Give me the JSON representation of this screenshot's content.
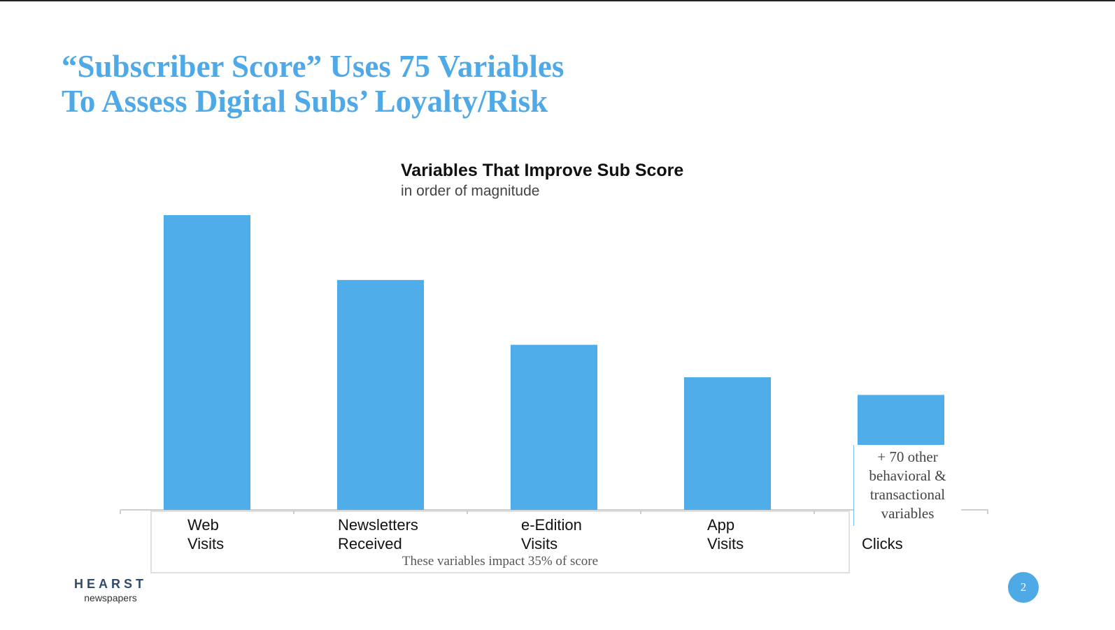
{
  "slide": {
    "title_line1": "“Subscriber Score” Uses 75 Variables",
    "title_line2": "To Assess Digital Subs’ Loyalty/Risk",
    "page_number": "2"
  },
  "logo": {
    "main": "HEARST",
    "sub": "newspapers"
  },
  "chart_data": {
    "type": "bar",
    "title": "Variables That Improve Sub Score",
    "subtitle": "in order of magnitude",
    "categories": [
      "Web\nVisits",
      "Newsletters\nReceived",
      "e-Edition\nVisits",
      "App\nVisits",
      "Clicks"
    ],
    "values": [
      100,
      78,
      56,
      45,
      39
    ],
    "ylim": [
      0,
      100
    ],
    "grid": false,
    "bar_color": "#4fadea",
    "impact_note": "These variables impact 35% of score",
    "other_note": "+ 70 other behavioral & transactional variables"
  }
}
